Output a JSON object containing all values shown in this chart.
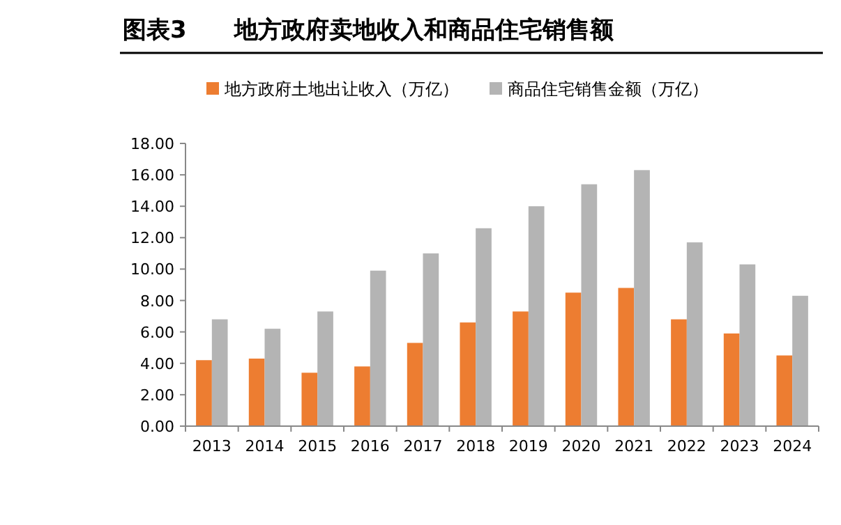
{
  "chart_data": {
    "type": "bar",
    "title": "图表3　　地方政府卖地收入和商品住宅销售额",
    "categories": [
      "2013",
      "2014",
      "2015",
      "2016",
      "2017",
      "2018",
      "2019",
      "2020",
      "2021",
      "2022",
      "2023",
      "2024"
    ],
    "series": [
      {
        "name": "地方政府土地出让收入（万亿）",
        "color": "#ed7d31",
        "values": [
          4.2,
          4.3,
          3.4,
          3.8,
          5.3,
          6.6,
          7.3,
          8.5,
          8.8,
          6.8,
          5.9,
          4.5
        ]
      },
      {
        "name": "商品住宅销售金额（万亿）",
        "color": "#b4b4b4",
        "values": [
          6.8,
          6.2,
          7.3,
          9.9,
          11.0,
          12.6,
          14.0,
          15.4,
          16.3,
          11.7,
          10.3,
          8.3
        ]
      }
    ],
    "ylim": [
      0,
      18
    ],
    "yticks": [
      {
        "value": 0,
        "label": "0.00"
      },
      {
        "value": 2,
        "label": "2.00"
      },
      {
        "value": 4,
        "label": "4.00"
      },
      {
        "value": 6,
        "label": "6.00"
      },
      {
        "value": 8,
        "label": "8.00"
      },
      {
        "value": 10,
        "label": "10.00"
      },
      {
        "value": 12,
        "label": "12.00"
      },
      {
        "value": 14,
        "label": "14.00"
      },
      {
        "value": 16,
        "label": "16.00"
      },
      {
        "value": 18,
        "label": "18.00"
      }
    ],
    "legend": "top"
  }
}
